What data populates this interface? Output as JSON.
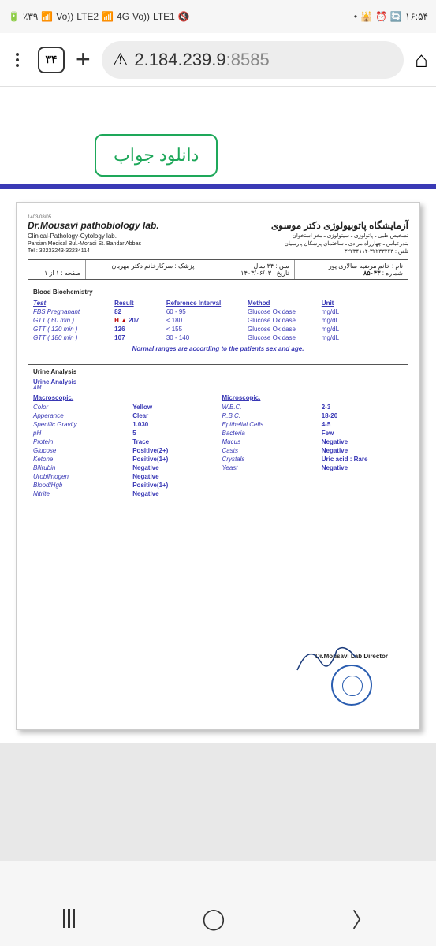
{
  "status": {
    "battery": "٪۳۹",
    "lte2": "LTE2",
    "lte1": "LTE1",
    "vol1": "Vo))",
    "vol2": "Vo))",
    "fourg": "4G",
    "time": "۱۶:۵۴"
  },
  "browser": {
    "tab_count": "۳۴",
    "url_host": "2.184.239.9",
    "url_port": ":8585"
  },
  "page": {
    "download_btn": "دانلود جواب"
  },
  "report": {
    "id_small": "1403/08/05",
    "lab_en": "Dr.Mousavi pathobiology lab.",
    "lab_sub": "Clinical-Pathology-Cytology lab.",
    "lab_addr": "Parsian Medical Bul.-Moradi St. Bandar Abbas",
    "lab_tel": "Tel : 32233243-32234114",
    "lab_fa": "آزمایشگاه پاتوبیولوژی دکتر موسوی",
    "lab_fa_sub1": "تشخیص طبی ـ پاتولوژی ـ سیتولوژی ـ مغز استخوان",
    "lab_fa_sub2": "بندرعباس ـ چهارراه مرادی ـ ساختمان پزشکان پارسیان",
    "lab_fa_tel": "تلفن : ۳۲۲۳۳۲۴۳-۳۲۲۳۴۱۱۴",
    "patient": {
      "name_lbl": "نام :",
      "name": "خانم مرضیه سالاری پور",
      "number_lbl": "شماره :",
      "number": "۸۵۰۴۳",
      "age_lbl": "سن :",
      "age": "۳۴ سال",
      "date_lbl": "تاریخ :",
      "date": "۱۴۰۳/۰۶/۰۳",
      "doctor_lbl": "پزشک :",
      "doctor": "سرکارخانم دکتر مهربان",
      "page": "صفحه : ۱ از ۱"
    },
    "bio": {
      "title": "Blood Biochemistry",
      "hdr_test": "Test",
      "hdr_result": "Result",
      "hdr_ref": "Reference Interval",
      "hdr_method": "Method",
      "hdr_unit": "Unit",
      "rows": [
        {
          "test": "FBS Pregnanant",
          "flag": "",
          "result": "82",
          "ref": "60 - 95",
          "method": "Glucose Oxidase",
          "unit": "mg/dL"
        },
        {
          "test": "GTT ( 60 min )",
          "flag": "H ▲",
          "result": "207",
          "ref": "< 180",
          "method": "Glucose Oxidase",
          "unit": "mg/dL"
        },
        {
          "test": "GTT ( 120 min )",
          "flag": "",
          "result": "126",
          "ref": "< 155",
          "method": "Glucose Oxidase",
          "unit": "mg/dL"
        },
        {
          "test": "GTT ( 180 min )",
          "flag": "",
          "result": "107",
          "ref": "30 - 140",
          "method": "Glucose Oxidase",
          "unit": "mg/dL"
        }
      ],
      "note": "Normal ranges are according to the patients sex and age."
    },
    "urine": {
      "title": "Urine Analysis",
      "sub": "Urine Analysis",
      "time": "AM",
      "macro_title": "Macroscopic.",
      "micro_title": "Microscopic.",
      "macro": [
        {
          "k": "Color",
          "v": "Yellow"
        },
        {
          "k": "Apperance",
          "v": "Clear"
        },
        {
          "k": "Specific Gravity",
          "v": "1.030"
        },
        {
          "k": "pH",
          "v": "5"
        },
        {
          "k": "Protein",
          "v": "Trace"
        },
        {
          "k": "Glucose",
          "v": "Positive(2+)"
        },
        {
          "k": "Ketone",
          "v": "Positive(1+)"
        },
        {
          "k": "Bilirubin",
          "v": "Negative"
        },
        {
          "k": "Urobilinogen",
          "v": "Negative"
        },
        {
          "k": "Blood/Hgb",
          "v": "Positive(1+)"
        },
        {
          "k": "Nitrite",
          "v": "Negative"
        }
      ],
      "micro": [
        {
          "k": "W.B.C.",
          "v": "2-3"
        },
        {
          "k": "R.B.C.",
          "v": "18-20"
        },
        {
          "k": "Epithelial Cells",
          "v": "4-5"
        },
        {
          "k": "Bacteria",
          "v": "Few"
        },
        {
          "k": "Mucus",
          "v": "Negative"
        },
        {
          "k": "Casts",
          "v": "Negative"
        },
        {
          "k": "Crystals",
          "v": "Uric acid : Rare"
        },
        {
          "k": "Yeast",
          "v": "Negative"
        }
      ]
    },
    "director": "Dr.Mousavi Lab Director"
  }
}
